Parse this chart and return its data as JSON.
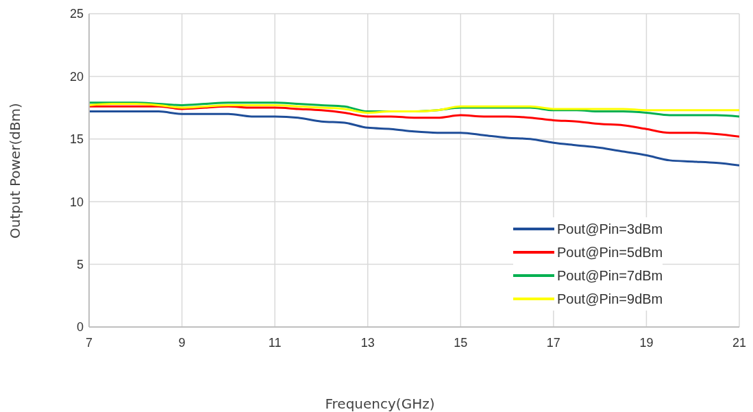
{
  "chart_data": {
    "type": "line",
    "xlabel": "Frequency(GHz)",
    "ylabel": "Output Power(dBm)",
    "x": [
      7,
      7.5,
      8,
      8.5,
      9,
      9.5,
      10,
      10.5,
      11,
      11.5,
      12,
      12.5,
      13,
      13.5,
      14,
      14.5,
      15,
      15.5,
      16,
      16.5,
      17,
      17.5,
      18,
      18.5,
      19,
      19.5,
      20,
      20.5,
      21
    ],
    "series": [
      {
        "name": "Pout@Pin=3dBm",
        "color": "#1f4e99",
        "values": [
          17.2,
          17.2,
          17.2,
          17.2,
          17.0,
          17.0,
          17.0,
          16.8,
          16.8,
          16.7,
          16.4,
          16.3,
          15.9,
          15.8,
          15.6,
          15.5,
          15.5,
          15.3,
          15.1,
          15.0,
          14.7,
          14.5,
          14.3,
          14.0,
          13.7,
          13.3,
          13.2,
          13.1,
          12.9
        ]
      },
      {
        "name": "Pout@Pin=5dBm",
        "color": "#ff0000",
        "values": [
          17.6,
          17.6,
          17.6,
          17.6,
          17.4,
          17.5,
          17.6,
          17.5,
          17.5,
          17.4,
          17.3,
          17.1,
          16.8,
          16.8,
          16.7,
          16.7,
          16.9,
          16.8,
          16.8,
          16.7,
          16.5,
          16.4,
          16.2,
          16.1,
          15.8,
          15.5,
          15.5,
          15.4,
          15.2
        ]
      },
      {
        "name": "Pout@Pin=7dBm",
        "color": "#00b050",
        "values": [
          17.9,
          17.9,
          17.9,
          17.8,
          17.7,
          17.8,
          17.9,
          17.9,
          17.9,
          17.8,
          17.7,
          17.6,
          17.2,
          17.2,
          17.2,
          17.3,
          17.5,
          17.5,
          17.5,
          17.5,
          17.3,
          17.3,
          17.2,
          17.2,
          17.1,
          16.9,
          16.9,
          16.9,
          16.8
        ]
      },
      {
        "name": "Pout@Pin=9dBm",
        "color": "#ffff00",
        "values": [
          17.7,
          17.8,
          17.8,
          17.7,
          17.5,
          17.6,
          17.7,
          17.7,
          17.7,
          17.6,
          17.5,
          17.4,
          17.1,
          17.2,
          17.2,
          17.3,
          17.6,
          17.6,
          17.6,
          17.6,
          17.4,
          17.4,
          17.4,
          17.4,
          17.3,
          17.3,
          17.3,
          17.3,
          17.3
        ]
      }
    ],
    "xlim": [
      7,
      21
    ],
    "xticks": [
      7,
      9,
      11,
      13,
      15,
      17,
      19,
      21
    ],
    "ylim": [
      0,
      25
    ],
    "yticks": [
      0,
      5,
      10,
      15,
      20,
      25
    ],
    "grid": true,
    "legend": "bottom right",
    "marker": "none",
    "line_style": "solid"
  }
}
